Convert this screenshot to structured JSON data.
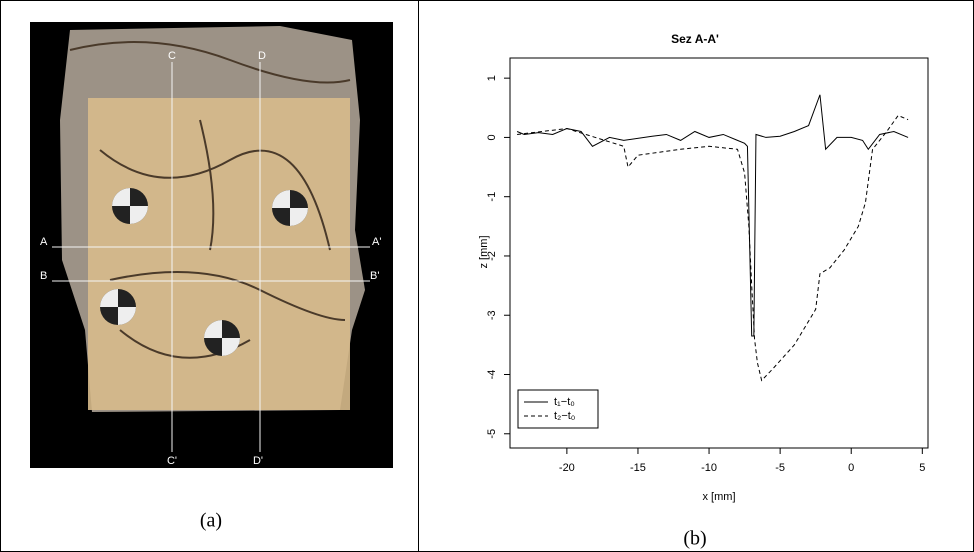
{
  "photo": {
    "labels": [
      "C",
      "D",
      "A",
      "A'",
      "B",
      "B'",
      "C'",
      "D'"
    ]
  },
  "captions": [
    "(a)",
    "(b)"
  ],
  "chart_data": {
    "type": "line",
    "title": "Sez A-A'",
    "xlabel": "x [mm]",
    "ylabel": "z [mm]",
    "xlim": [
      -24,
      5.4
    ],
    "ylim": [
      -5.24,
      1.34
    ],
    "xticks": [
      -20,
      -15,
      -10,
      -5,
      0,
      5
    ],
    "yticks": [
      1,
      0,
      -1,
      -2,
      -3,
      -4,
      -5
    ],
    "legend": "bottom-left",
    "series": [
      {
        "name": "t₁−t₀",
        "color": "#000000",
        "dash": "solid",
        "x": [
          -23.5,
          -23,
          -22,
          -21,
          -20,
          -19,
          -18.2,
          -17,
          -16,
          -14,
          -13,
          -12,
          -11,
          -10,
          -9,
          -8,
          -7.5,
          -7.3,
          -7.0,
          -6.85,
          -6.7,
          -6,
          -5,
          -4,
          -3,
          -2.2,
          -1.8,
          -1,
          0,
          0.8,
          1.2,
          2,
          3,
          4
        ],
        "values": [
          0.1,
          0.05,
          0.08,
          0.05,
          0.15,
          0.1,
          -0.15,
          0,
          -0.05,
          0.02,
          0.05,
          -0.05,
          0.1,
          0,
          0.05,
          -0.05,
          -0.1,
          -0.15,
          -3.35,
          -3.35,
          0.05,
          0,
          0.02,
          0.1,
          0.2,
          0.72,
          -0.2,
          0,
          0,
          -0.05,
          -0.2,
          0.05,
          0.1,
          0
        ]
      },
      {
        "name": "t₂−t₀",
        "color": "#000000",
        "dash": "dashed",
        "x": [
          -23.5,
          -20,
          -18,
          -16,
          -15.7,
          -15,
          -12,
          -10,
          -8,
          -7.5,
          -7.2,
          -7,
          -6.8,
          -6.6,
          -6.3,
          -5.5,
          -4,
          -2.5,
          -2.2,
          -1.5,
          -0.5,
          0.5,
          1,
          1.5,
          2.5,
          3.3,
          4
        ],
        "values": [
          0.05,
          0.15,
          0,
          -0.15,
          -0.5,
          -0.3,
          -0.2,
          -0.15,
          -0.2,
          -0.6,
          -1.5,
          -2.5,
          -3.4,
          -3.8,
          -4.1,
          -3.9,
          -3.5,
          -2.9,
          -2.3,
          -2.2,
          -1.9,
          -1.5,
          -1.1,
          -0.2,
          0.1,
          0.37,
          0.3
        ]
      }
    ]
  }
}
